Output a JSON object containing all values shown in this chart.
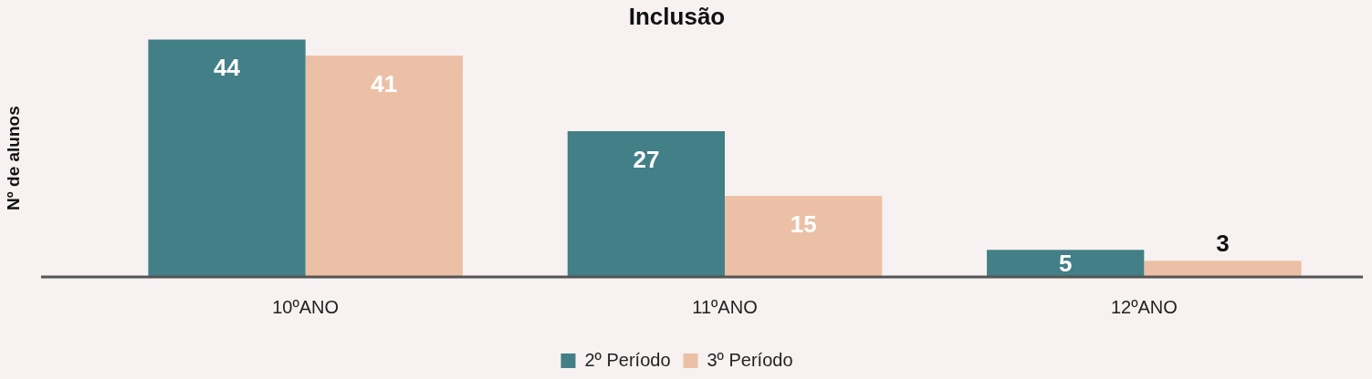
{
  "chart_data": {
    "type": "bar",
    "title": "Inclusão",
    "ylabel": "Nº de alunos",
    "categories": [
      "10ºANO",
      "11ºANO",
      "12ºANO"
    ],
    "series": [
      {
        "name": "2º Período",
        "color": "#437f86",
        "values": [
          44,
          27,
          5
        ]
      },
      {
        "name": "3º Período",
        "color": "#ecc0a6",
        "values": [
          41,
          15,
          3
        ]
      }
    ],
    "data_labels": true,
    "grid": false,
    "legend": "bottom"
  }
}
